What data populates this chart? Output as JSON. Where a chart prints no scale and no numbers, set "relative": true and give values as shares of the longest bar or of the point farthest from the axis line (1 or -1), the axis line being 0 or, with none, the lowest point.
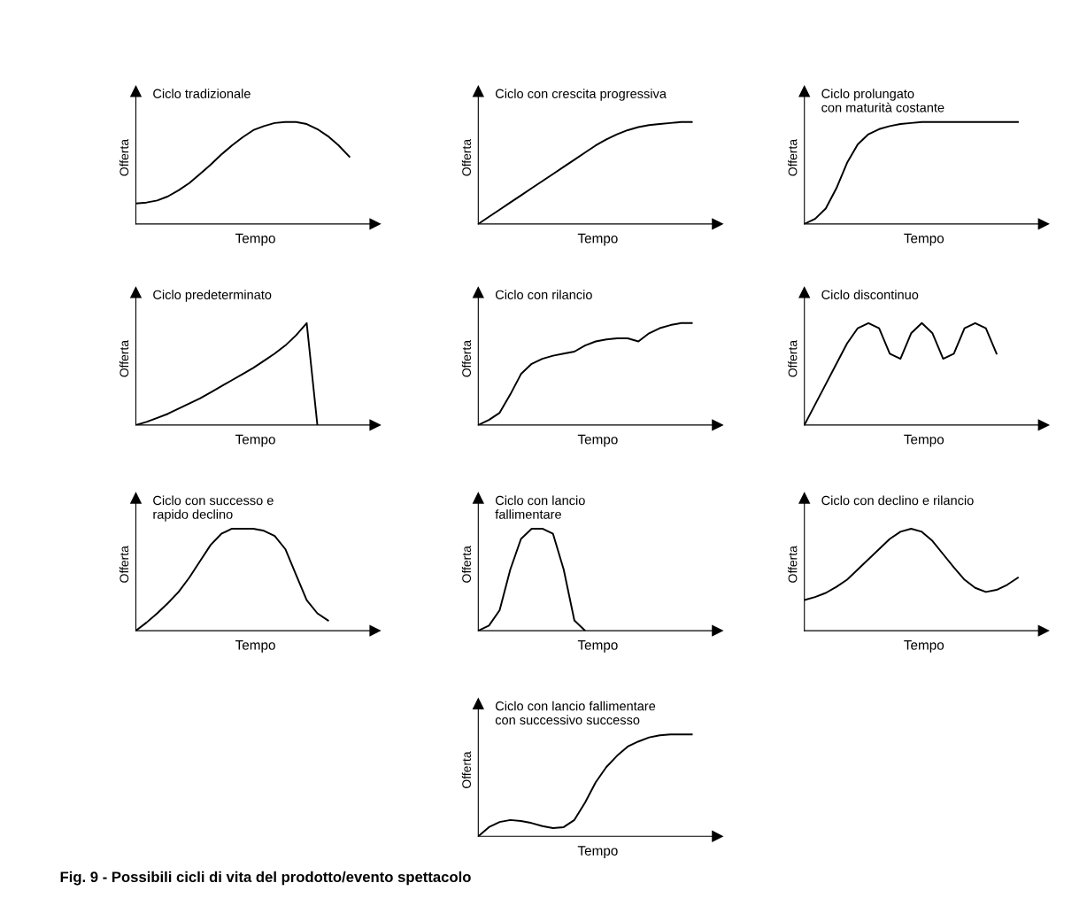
{
  "chart_data": [
    {
      "type": "line",
      "relative": true,
      "title": "Ciclo tradizionale",
      "xlabel": "Tempo",
      "ylabel": "Offerta",
      "categories": [
        null,
        null,
        null,
        null,
        null,
        null,
        null,
        null,
        null,
        null,
        null,
        null,
        null,
        null,
        null,
        null,
        null,
        null,
        null,
        null,
        null
      ],
      "series": [
        {
          "color": "#000000",
          "values": [
            0.2,
            0.21,
            0.23,
            0.27,
            0.33,
            0.4,
            0.49,
            0.58,
            0.68,
            0.77,
            0.85,
            0.92,
            0.96,
            0.99,
            1.0,
            1.0,
            0.98,
            0.93,
            0.86,
            0.77,
            0.66
          ]
        }
      ]
    },
    {
      "type": "line",
      "relative": true,
      "title": "Ciclo con crescita progressiva",
      "xlabel": "Tempo",
      "ylabel": "Offerta",
      "categories": [
        null,
        null,
        null,
        null,
        null,
        null,
        null,
        null,
        null,
        null,
        null,
        null,
        null,
        null,
        null,
        null,
        null,
        null,
        null,
        null,
        null
      ],
      "series": [
        {
          "color": "#000000",
          "values": [
            0,
            0.07,
            0.14,
            0.21,
            0.28,
            0.35,
            0.42,
            0.49,
            0.56,
            0.63,
            0.7,
            0.77,
            0.83,
            0.88,
            0.92,
            0.95,
            0.97,
            0.98,
            0.99,
            1.0,
            1.0
          ]
        }
      ]
    },
    {
      "type": "line",
      "relative": true,
      "title": "Ciclo prolungato\ncon maturità costante",
      "xlabel": "Tempo",
      "ylabel": "Offerta",
      "categories": [
        null,
        null,
        null,
        null,
        null,
        null,
        null,
        null,
        null,
        null,
        null,
        null,
        null,
        null,
        null,
        null,
        null,
        null,
        null,
        null,
        null
      ],
      "series": [
        {
          "color": "#000000",
          "values": [
            0,
            0.05,
            0.15,
            0.35,
            0.6,
            0.78,
            0.88,
            0.93,
            0.96,
            0.98,
            0.99,
            1.0,
            1.0,
            1.0,
            1.0,
            1.0,
            1.0,
            1.0,
            1.0,
            1.0,
            1.0
          ]
        }
      ]
    },
    {
      "type": "line",
      "relative": true,
      "title": "Ciclo predeterminato",
      "xlabel": "Tempo",
      "ylabel": "Offerta",
      "categories": [
        null,
        null,
        null,
        null,
        null,
        null,
        null,
        null,
        null,
        null,
        null,
        null,
        null,
        null,
        null,
        null,
        null,
        null,
        null,
        null,
        null
      ],
      "series": [
        {
          "color": "#000000",
          "values": [
            0,
            0.03,
            0.07,
            0.11,
            0.16,
            0.21,
            0.26,
            0.32,
            0.38,
            0.44,
            0.5,
            0.56,
            0.63,
            0.7,
            0.78,
            0.88,
            1.0,
            0,
            null,
            null,
            null
          ]
        }
      ]
    },
    {
      "type": "line",
      "relative": true,
      "title": "Ciclo con rilancio",
      "xlabel": "Tempo",
      "ylabel": "Offerta",
      "categories": [
        null,
        null,
        null,
        null,
        null,
        null,
        null,
        null,
        null,
        null,
        null,
        null,
        null,
        null,
        null,
        null,
        null,
        null,
        null,
        null,
        null
      ],
      "series": [
        {
          "color": "#000000",
          "values": [
            0,
            0.05,
            0.12,
            0.3,
            0.5,
            0.6,
            0.65,
            0.68,
            0.7,
            0.72,
            0.78,
            0.82,
            0.84,
            0.85,
            0.85,
            0.82,
            0.9,
            0.95,
            0.98,
            1.0,
            1.0
          ]
        }
      ]
    },
    {
      "type": "line",
      "relative": true,
      "title": "Ciclo discontinuo",
      "xlabel": "Tempo",
      "ylabel": "Offerta",
      "categories": [
        null,
        null,
        null,
        null,
        null,
        null,
        null,
        null,
        null,
        null,
        null,
        null,
        null,
        null,
        null,
        null,
        null,
        null,
        null,
        null,
        null
      ],
      "series": [
        {
          "color": "#000000",
          "values": [
            0,
            0.2,
            0.4,
            0.6,
            0.8,
            0.95,
            1.0,
            0.95,
            0.7,
            0.65,
            0.9,
            1.0,
            0.9,
            0.65,
            0.7,
            0.95,
            1.0,
            0.95,
            0.7,
            null,
            null
          ]
        }
      ]
    },
    {
      "type": "line",
      "relative": true,
      "title": "Ciclo con successo e\nrapido declino",
      "xlabel": "Tempo",
      "ylabel": "Offerta",
      "categories": [
        null,
        null,
        null,
        null,
        null,
        null,
        null,
        null,
        null,
        null,
        null,
        null,
        null,
        null,
        null,
        null,
        null,
        null,
        null,
        null,
        null
      ],
      "series": [
        {
          "color": "#000000",
          "values": [
            0,
            0.08,
            0.17,
            0.27,
            0.38,
            0.52,
            0.68,
            0.84,
            0.95,
            1.0,
            1.0,
            1.0,
            0.98,
            0.93,
            0.8,
            0.55,
            0.3,
            0.17,
            0.1,
            null,
            null
          ]
        }
      ]
    },
    {
      "type": "line",
      "relative": true,
      "title": "Ciclo con lancio\nfallimentare",
      "xlabel": "Tempo",
      "ylabel": "Offerta",
      "categories": [
        null,
        null,
        null,
        null,
        null,
        null,
        null,
        null,
        null,
        null,
        null,
        null,
        null,
        null,
        null,
        null,
        null,
        null,
        null,
        null,
        null
      ],
      "series": [
        {
          "color": "#000000",
          "values": [
            0,
            0.05,
            0.2,
            0.6,
            0.9,
            1.0,
            1.0,
            0.95,
            0.6,
            0.1,
            0,
            null,
            null,
            null,
            null,
            null,
            null,
            null,
            null,
            null,
            null
          ]
        }
      ]
    },
    {
      "type": "line",
      "relative": true,
      "title": "Ciclo con declino e rilancio",
      "xlabel": "Tempo",
      "ylabel": "Offerta",
      "categories": [
        null,
        null,
        null,
        null,
        null,
        null,
        null,
        null,
        null,
        null,
        null,
        null,
        null,
        null,
        null,
        null,
        null,
        null,
        null,
        null,
        null
      ],
      "series": [
        {
          "color": "#000000",
          "values": [
            0.3,
            0.33,
            0.37,
            0.43,
            0.5,
            0.6,
            0.7,
            0.8,
            0.9,
            0.97,
            1.0,
            0.97,
            0.88,
            0.75,
            0.62,
            0.5,
            0.42,
            0.38,
            0.4,
            0.45,
            0.52
          ]
        }
      ]
    },
    {
      "type": "line",
      "relative": true,
      "title": "Ciclo con lancio fallimentare\ncon successivo successo",
      "xlabel": "Tempo",
      "ylabel": "Offerta",
      "categories": [
        null,
        null,
        null,
        null,
        null,
        null,
        null,
        null,
        null,
        null,
        null,
        null,
        null,
        null,
        null,
        null,
        null,
        null,
        null,
        null,
        null
      ],
      "series": [
        {
          "color": "#000000",
          "values": [
            0,
            0.09,
            0.14,
            0.16,
            0.15,
            0.13,
            0.1,
            0.08,
            0.09,
            0.16,
            0.33,
            0.53,
            0.68,
            0.79,
            0.88,
            0.93,
            0.97,
            0.99,
            1.0,
            1.0,
            1.0
          ]
        }
      ],
      "annotations": [
        "Fig. 9 - Possibili cicli di vita del prodotto/evento spettacolo"
      ]
    }
  ]
}
